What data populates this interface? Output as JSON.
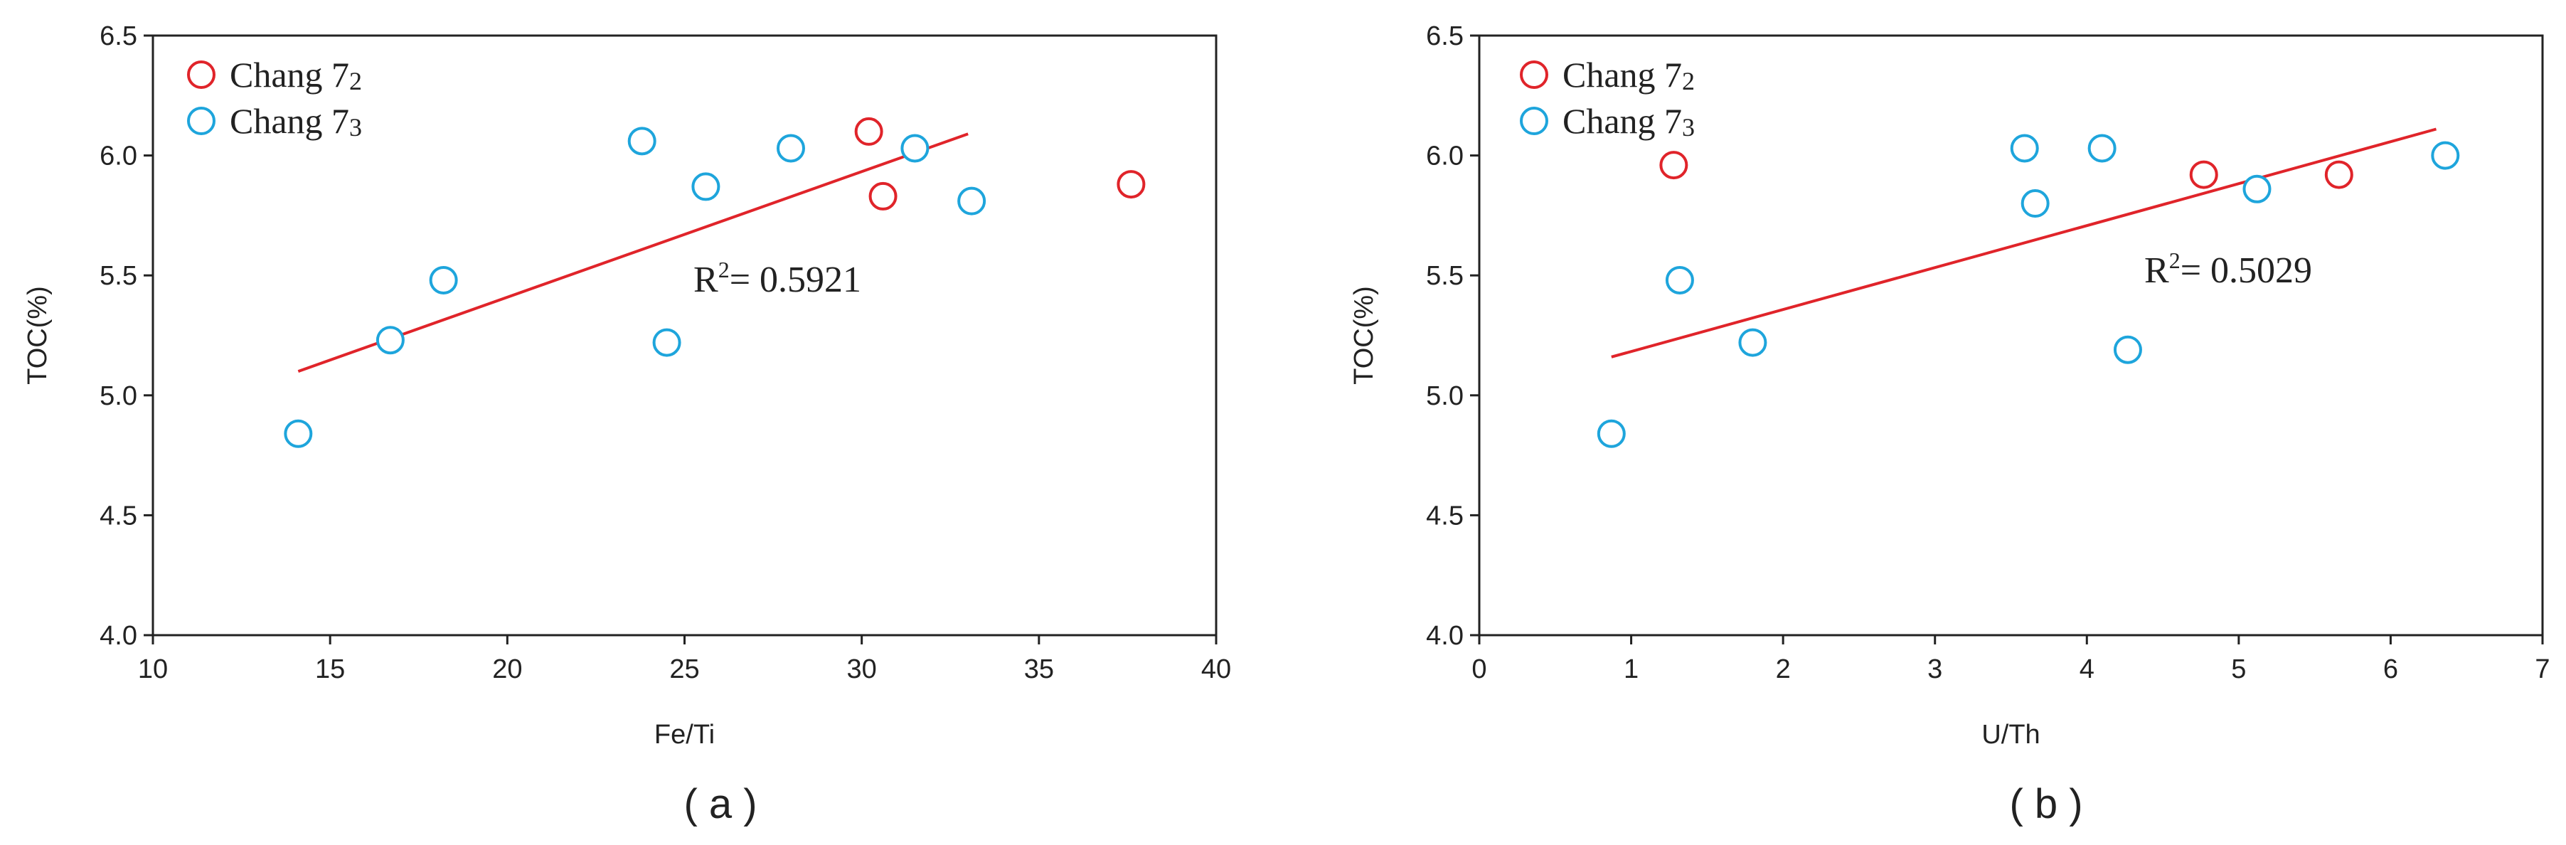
{
  "chart_data": [
    {
      "type": "scatter",
      "panel_label": "( a )",
      "xlabel": "Fe/Ti",
      "ylabel": "TOC(%)",
      "xlim": [
        10,
        40
      ],
      "ylim": [
        4.0,
        6.5
      ],
      "xticks": [
        "10",
        "15",
        "20",
        "25",
        "30",
        "35",
        "40"
      ],
      "yticks": [
        "4.0",
        "4.5",
        "5.0",
        "5.5",
        "6.0",
        "6.5"
      ],
      "grid": false,
      "legend_position": "top-left",
      "series": [
        {
          "name_main": "Chang 7",
          "name_sub": "2",
          "color": "#e0242a",
          "points": [
            [
              30.2,
              6.1
            ],
            [
              30.6,
              5.83
            ],
            [
              37.6,
              5.88
            ]
          ]
        },
        {
          "name_main": "Chang 7",
          "name_sub": "3",
          "color": "#1ea5dc",
          "points": [
            [
              14.1,
              4.84
            ],
            [
              16.7,
              5.23
            ],
            [
              18.2,
              5.48
            ],
            [
              23.8,
              6.06
            ],
            [
              24.5,
              5.22
            ],
            [
              25.6,
              5.87
            ],
            [
              28.0,
              6.03
            ],
            [
              31.5,
              6.03
            ],
            [
              33.1,
              5.81
            ]
          ]
        }
      ],
      "trendline": {
        "color": "#e0242a",
        "x": [
          14.1,
          33.0
        ],
        "y": [
          5.1,
          6.09
        ]
      },
      "annotation": {
        "prefix": "R",
        "superscript": "2",
        "value_text": "= 0.5921"
      }
    },
    {
      "type": "scatter",
      "panel_label": "( b )",
      "xlabel": "U/Th",
      "ylabel": "TOC(%)",
      "xlim": [
        0,
        7
      ],
      "ylim": [
        4.0,
        6.5
      ],
      "xticks": [
        "0",
        "1",
        "2",
        "3",
        "4",
        "5",
        "6",
        "7"
      ],
      "yticks": [
        "4.0",
        "4.5",
        "5.0",
        "5.5",
        "6.0",
        "6.5"
      ],
      "grid": false,
      "legend_position": "top-left",
      "series": [
        {
          "name_main": "Chang 7",
          "name_sub": "2",
          "color": "#e0242a",
          "points": [
            [
              1.28,
              5.96
            ],
            [
              4.77,
              5.92
            ],
            [
              5.66,
              5.92
            ]
          ]
        },
        {
          "name_main": "Chang 7",
          "name_sub": "3",
          "color": "#1ea5dc",
          "points": [
            [
              0.87,
              4.84
            ],
            [
              1.32,
              5.48
            ],
            [
              1.8,
              5.22
            ],
            [
              3.59,
              6.03
            ],
            [
              3.66,
              5.8
            ],
            [
              4.1,
              6.03
            ],
            [
              4.27,
              5.19
            ],
            [
              5.12,
              5.86
            ],
            [
              6.36,
              6.0
            ]
          ]
        }
      ],
      "trendline": {
        "color": "#e0242a",
        "x": [
          0.87,
          6.3
        ],
        "y": [
          5.16,
          6.11
        ]
      },
      "annotation": {
        "prefix": "R",
        "superscript": "2",
        "value_text": "= 0.5029"
      }
    }
  ]
}
